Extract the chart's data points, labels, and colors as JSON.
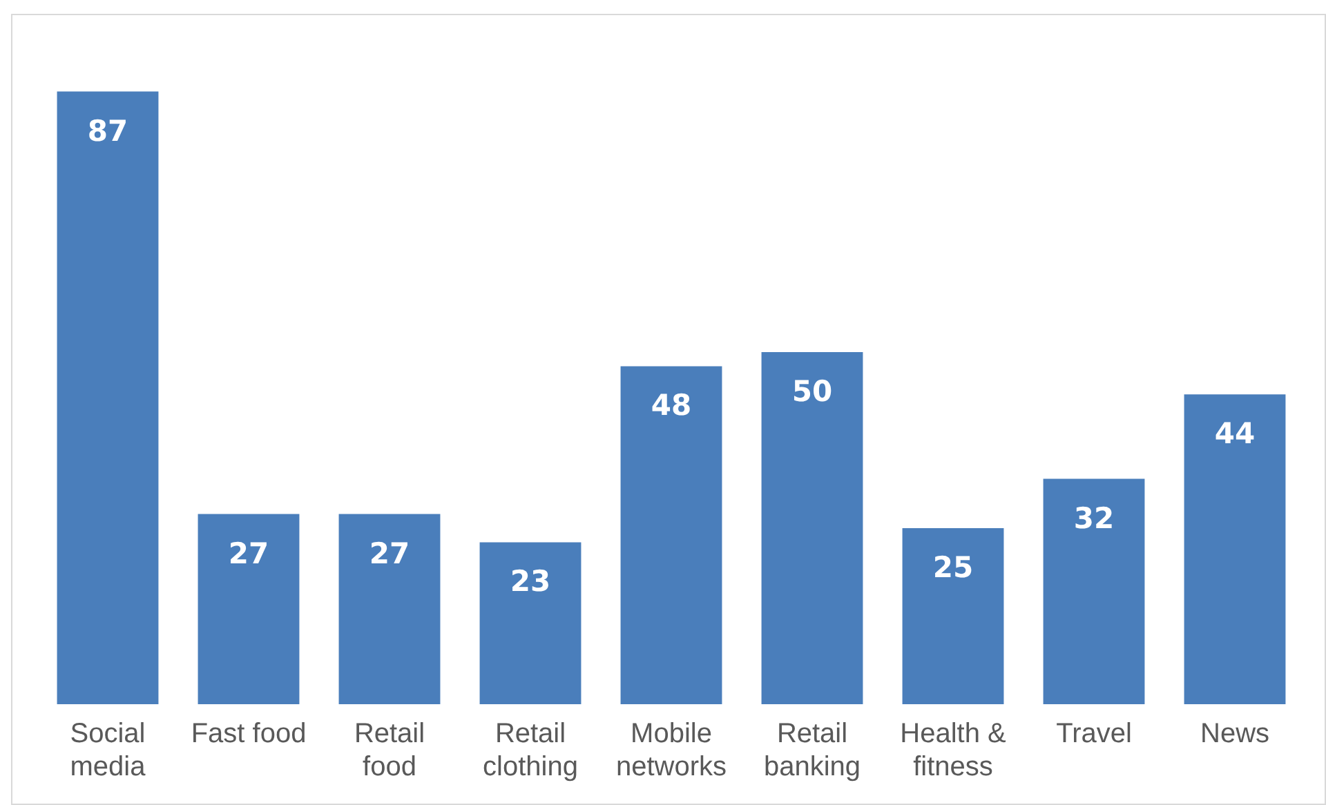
{
  "chart_data": {
    "type": "bar",
    "categories": [
      "Social media",
      "Fast food",
      "Retail food",
      "Retail clothing",
      "Mobile networks",
      "Retail banking",
      "Health & fitness",
      "Travel",
      "News"
    ],
    "values": [
      87,
      27,
      27,
      23,
      48,
      50,
      25,
      32,
      44
    ],
    "color": "#4a7ebb",
    "data_labels": true,
    "grid": false,
    "legend": false
  }
}
